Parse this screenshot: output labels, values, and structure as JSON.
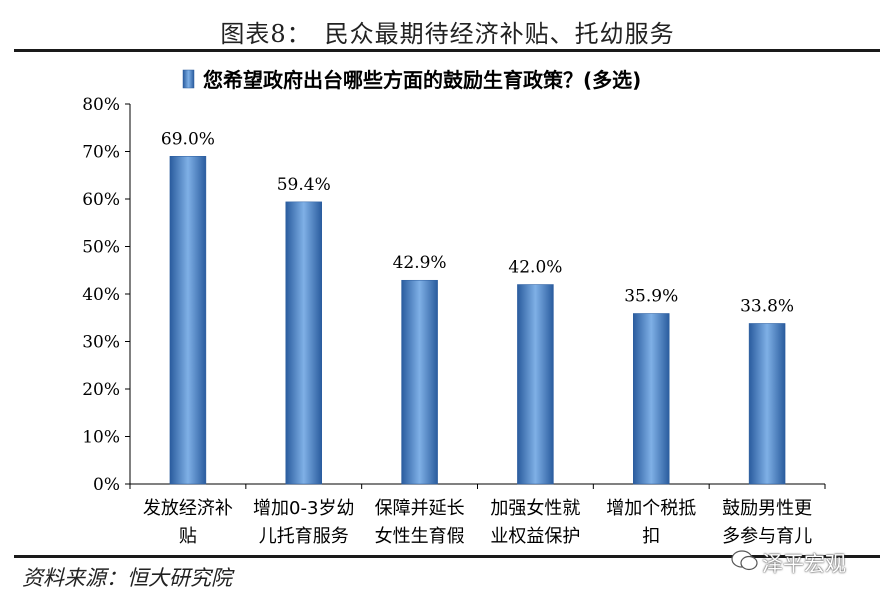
{
  "figure": {
    "title": "图表8：　民众最期待经济补贴、托幼服务",
    "source": "资料来源：恒大研究院",
    "watermark": "泽平宏观"
  },
  "colors": {
    "bar_dark": "#2a5c9e",
    "bar_light": "#7fb0e6",
    "text": "#000000"
  },
  "chart_data": {
    "type": "bar",
    "title": "",
    "legend": [
      "您希望政府出台哪些方面的鼓励生育政策？(多选)"
    ],
    "legend_position": "top",
    "categories": [
      [
        "发放经济补",
        "贴"
      ],
      [
        "增加0-3岁幼",
        "儿托育服务"
      ],
      [
        "保障并延长",
        "女性生育假"
      ],
      [
        "加强女性就",
        "业权益保护"
      ],
      [
        "增加个税抵",
        "扣"
      ],
      [
        "鼓励男性更",
        "多参与育儿"
      ]
    ],
    "series": [
      {
        "name": "您希望政府出台哪些方面的鼓励生育政策？(多选)",
        "values": [
          69.0,
          59.4,
          42.9,
          42.0,
          35.9,
          33.8
        ]
      }
    ],
    "data_labels": [
      "69.0%",
      "59.4%",
      "42.9%",
      "42.0%",
      "35.9%",
      "33.8%"
    ],
    "ylim": [
      0,
      80
    ],
    "yticks": [
      "0%",
      "10%",
      "20%",
      "30%",
      "40%",
      "50%",
      "60%",
      "70%",
      "80%"
    ],
    "xlabel": "",
    "ylabel": "",
    "grid": false
  }
}
